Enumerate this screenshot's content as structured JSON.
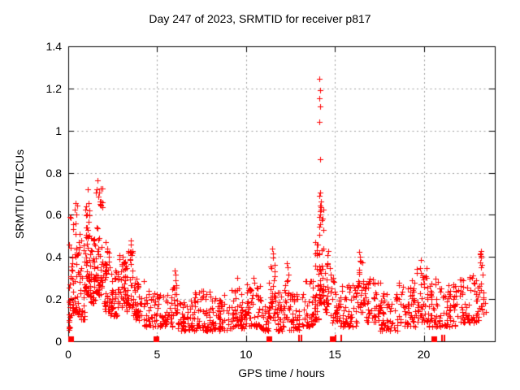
{
  "figure": {
    "title": "Day 247 of 2023, SRMTID for receiver p817",
    "xlabel": "GPS time / hours",
    "ylabel": "SRMTID / TECUs",
    "background_color": "#ffffff",
    "text_color": "#000000",
    "frame_color": "#000000"
  },
  "chart_data": {
    "type": "scatter",
    "title": "Day 247 of 2023, SRMTID for receiver p817",
    "xlabel": "GPS time / hours",
    "ylabel": "SRMTID / TECUs",
    "series_name": "SRMTID",
    "xlim": [
      0,
      24
    ],
    "ylim": [
      0,
      1.4
    ],
    "xticks": {
      "values": [
        0,
        5,
        10,
        15,
        20
      ],
      "labels": [
        "0",
        "5",
        "10",
        "15",
        "20"
      ]
    },
    "yticks": {
      "values": [
        0,
        0.2,
        0.4,
        0.6,
        0.8,
        1.0,
        1.2,
        1.4
      ],
      "labels": [
        "0",
        "0.2",
        "0.4",
        "0.6",
        "0.8",
        "1",
        "1.2",
        "1.4"
      ]
    },
    "grid": {
      "show": true,
      "color": "#9e9e9e",
      "dash_on": 2,
      "dash_off": 3.5
    },
    "marker": {
      "shape": "plus",
      "color": "#ff0000",
      "size": 7
    },
    "legend": "none",
    "prng_seed": 247,
    "sample_interval_hours": 0.008333,
    "outlier_points": [
      [
        14.12,
        1.245
      ],
      [
        14.15,
        1.19
      ],
      [
        14.13,
        1.155
      ],
      [
        14.16,
        1.115
      ],
      [
        14.14,
        1.04
      ],
      [
        14.15,
        0.865
      ],
      [
        14.18,
        0.705
      ],
      [
        14.13,
        0.69
      ],
      [
        14.21,
        0.665
      ],
      [
        14.17,
        0.645
      ],
      [
        14.23,
        0.625
      ],
      [
        14.19,
        0.6
      ],
      [
        14.25,
        0.575
      ],
      [
        1.65,
        0.765
      ],
      [
        1.62,
        0.72
      ],
      [
        1.72,
        0.705
      ],
      [
        1.7,
        0.685
      ],
      [
        1.76,
        0.665
      ],
      [
        1.08,
        0.72
      ],
      [
        1.12,
        0.655
      ],
      [
        0.98,
        0.625
      ],
      [
        1.03,
        0.6
      ],
      [
        0.42,
        0.655
      ],
      [
        0.38,
        0.625
      ],
      [
        0.45,
        0.6
      ],
      [
        0.05,
        0.46
      ],
      [
        2.08,
        0.47
      ],
      [
        3.5,
        0.48
      ],
      [
        3.53,
        0.46
      ],
      [
        3.47,
        0.425
      ],
      [
        5.98,
        0.335
      ],
      [
        6.02,
        0.315
      ],
      [
        9.5,
        0.3
      ],
      [
        10.4,
        0.3
      ],
      [
        11.47,
        0.44
      ],
      [
        11.5,
        0.415
      ],
      [
        12.28,
        0.37
      ],
      [
        12.32,
        0.35
      ],
      [
        13.9,
        0.47
      ],
      [
        14.05,
        0.46
      ],
      [
        16.38,
        0.425
      ],
      [
        16.42,
        0.4
      ],
      [
        19.82,
        0.385
      ],
      [
        23.2,
        0.43
      ],
      [
        23.24,
        0.405
      ],
      [
        23.17,
        0.375
      ],
      [
        23.45,
        0.18
      ],
      [
        23.48,
        0.14
      ]
    ],
    "band_segments": [
      [
        0.02,
        0.12,
        0.05,
        0.48,
        16
      ],
      [
        0.1,
        0.55,
        0.12,
        0.66,
        48
      ],
      [
        0.55,
        0.95,
        0.1,
        0.52,
        36
      ],
      [
        0.95,
        1.2,
        0.22,
        0.7,
        42
      ],
      [
        1.2,
        1.55,
        0.18,
        0.5,
        40
      ],
      [
        1.55,
        1.95,
        0.22,
        0.74,
        48
      ],
      [
        1.95,
        2.35,
        0.14,
        0.46,
        40
      ],
      [
        2.35,
        2.75,
        0.12,
        0.36,
        36
      ],
      [
        2.75,
        3.35,
        0.14,
        0.42,
        55
      ],
      [
        3.35,
        3.65,
        0.16,
        0.46,
        26
      ],
      [
        3.65,
        4.25,
        0.1,
        0.3,
        40
      ],
      [
        4.25,
        5.05,
        0.07,
        0.24,
        48
      ],
      [
        5.05,
        5.85,
        0.07,
        0.22,
        44
      ],
      [
        5.85,
        6.15,
        0.12,
        0.32,
        20
      ],
      [
        6.15,
        7.05,
        0.05,
        0.2,
        50
      ],
      [
        7.05,
        8.05,
        0.05,
        0.24,
        58
      ],
      [
        8.05,
        9.05,
        0.05,
        0.22,
        58
      ],
      [
        9.05,
        9.95,
        0.06,
        0.26,
        55
      ],
      [
        9.95,
        10.85,
        0.07,
        0.28,
        55
      ],
      [
        10.85,
        11.3,
        0.05,
        0.2,
        26
      ],
      [
        11.3,
        11.62,
        0.1,
        0.42,
        28
      ],
      [
        11.62,
        12.12,
        0.05,
        0.25,
        32
      ],
      [
        12.12,
        12.42,
        0.1,
        0.35,
        20
      ],
      [
        12.42,
        13.35,
        0.05,
        0.25,
        48
      ],
      [
        13.35,
        13.85,
        0.07,
        0.3,
        32
      ],
      [
        13.85,
        14.1,
        0.1,
        0.46,
        28
      ],
      [
        14.1,
        14.35,
        0.18,
        0.68,
        38
      ],
      [
        14.35,
        14.72,
        0.14,
        0.44,
        28
      ],
      [
        14.72,
        15.25,
        0.09,
        0.33,
        32
      ],
      [
        15.25,
        16.25,
        0.07,
        0.28,
        55
      ],
      [
        16.25,
        16.6,
        0.14,
        0.41,
        28
      ],
      [
        16.6,
        17.55,
        0.09,
        0.3,
        52
      ],
      [
        17.55,
        18.55,
        0.05,
        0.23,
        55
      ],
      [
        18.55,
        19.55,
        0.07,
        0.3,
        55
      ],
      [
        19.55,
        20.25,
        0.09,
        0.37,
        46
      ],
      [
        20.25,
        21.05,
        0.07,
        0.3,
        46
      ],
      [
        21.05,
        21.95,
        0.07,
        0.28,
        48
      ],
      [
        21.95,
        22.75,
        0.09,
        0.32,
        46
      ],
      [
        22.75,
        23.12,
        0.09,
        0.3,
        24
      ],
      [
        23.12,
        23.38,
        0.13,
        0.42,
        20
      ]
    ],
    "zero_square_markers_x": [
      0.12,
      4.93,
      11.27,
      14.85,
      20.57
    ],
    "zero_double_ticks_x": [
      13.0,
      13.12,
      15.05,
      15.35,
      21.05,
      21.17
    ]
  }
}
